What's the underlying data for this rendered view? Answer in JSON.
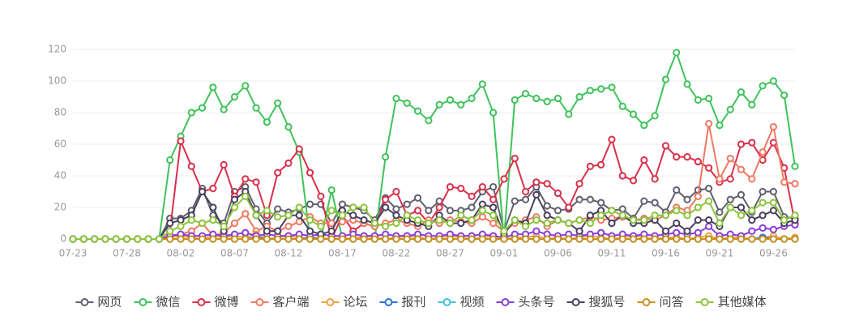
{
  "chart_data": {
    "type": "line",
    "categories": [
      "07-23",
      null,
      null,
      null,
      null,
      "07-28",
      null,
      null,
      null,
      null,
      "08-02",
      null,
      null,
      null,
      null,
      "08-07",
      null,
      null,
      null,
      null,
      "08-12",
      null,
      null,
      null,
      null,
      "08-17",
      null,
      null,
      null,
      null,
      "08-22",
      null,
      null,
      null,
      null,
      "08-27",
      null,
      null,
      null,
      null,
      "09-01",
      null,
      null,
      null,
      null,
      "09-06",
      null,
      null,
      null,
      null,
      "09-11",
      null,
      null,
      null,
      null,
      "09-16",
      null,
      null,
      null,
      null,
      "09-21",
      null,
      null,
      null,
      null,
      "09-26",
      null,
      null
    ],
    "ylim": [
      0,
      120
    ],
    "yticks": [
      0,
      20,
      40,
      60,
      80,
      100,
      120
    ],
    "grid": true,
    "legend": "bottom",
    "series": [
      {
        "name": "网页",
        "color": "#606070",
        "values": [
          0,
          0,
          0,
          0,
          0,
          0,
          0,
          0,
          0,
          13,
          13,
          18,
          32,
          15,
          10,
          30,
          33,
          19,
          10,
          19,
          17,
          19,
          22,
          22,
          10,
          22,
          20,
          18,
          12,
          26,
          19,
          22,
          26,
          18,
          24,
          18,
          18,
          20,
          30,
          33,
          5,
          24,
          25,
          33,
          21,
          18,
          19,
          25,
          25,
          23,
          18,
          19,
          13,
          24,
          23,
          17,
          31,
          25,
          31,
          32,
          17,
          25,
          28,
          17,
          30,
          30,
          14,
          13
        ]
      },
      {
        "name": "微信",
        "color": "#3fc35a",
        "values": [
          0,
          0,
          0,
          0,
          0,
          0,
          0,
          0,
          0,
          50,
          65,
          80,
          83,
          96,
          82,
          90,
          97,
          83,
          74,
          86,
          71,
          55,
          0,
          0,
          31,
          0,
          0,
          0,
          0,
          52,
          89,
          86,
          81,
          75,
          85,
          88,
          85,
          89,
          98,
          80,
          0,
          88,
          92,
          89,
          87,
          89,
          79,
          90,
          94,
          95,
          96,
          84,
          79,
          72,
          78,
          101,
          118,
          98,
          88,
          89,
          72,
          82,
          93,
          85,
          97,
          100,
          91,
          46
        ]
      },
      {
        "name": "微博",
        "color": "#d9304a",
        "values": [
          0,
          0,
          0,
          0,
          0,
          0,
          0,
          0,
          0,
          5,
          62,
          46,
          30,
          32,
          47,
          27,
          38,
          36,
          15,
          42,
          48,
          57,
          42,
          27,
          0,
          15,
          5,
          10,
          8,
          25,
          30,
          15,
          18,
          10,
          20,
          33,
          32,
          27,
          33,
          25,
          38,
          51,
          30,
          36,
          35,
          29,
          20,
          35,
          46,
          47,
          63,
          40,
          37,
          50,
          38,
          59,
          52,
          52,
          49,
          45,
          36,
          38,
          60,
          61,
          50,
          61,
          45,
          10
        ]
      },
      {
        "name": "客户端",
        "color": "#f07860",
        "values": [
          0,
          0,
          0,
          0,
          0,
          0,
          0,
          0,
          0,
          2,
          3,
          5,
          10,
          2,
          4,
          10,
          16,
          5,
          8,
          5,
          8,
          11,
          14,
          10,
          10,
          11,
          12,
          10,
          8,
          10,
          12,
          10,
          8,
          12,
          10,
          12,
          11,
          10,
          14,
          10,
          5,
          10,
          12,
          14,
          8,
          12,
          10,
          12,
          14,
          12,
          13,
          14,
          12,
          13,
          12,
          15,
          20,
          18,
          27,
          73,
          38,
          51,
          44,
          38,
          55,
          71,
          36,
          35
        ]
      },
      {
        "name": "论坛",
        "color": "#f0a040",
        "values": [
          0,
          0,
          0,
          0,
          0,
          0,
          0,
          0,
          0,
          1,
          2,
          1,
          0,
          2,
          1,
          2,
          1,
          3,
          0,
          1,
          2,
          1,
          0,
          1,
          0,
          1,
          0,
          2,
          1,
          0,
          1,
          2,
          1,
          0,
          1,
          2,
          1,
          0,
          1,
          2,
          0,
          1,
          1,
          2,
          0,
          1,
          0,
          1,
          2,
          1,
          0,
          1,
          2,
          1,
          0,
          1,
          1,
          0,
          1,
          2,
          0,
          1,
          1,
          0,
          1,
          2,
          0,
          1
        ]
      },
      {
        "name": "报刊",
        "color": "#2d6fd6",
        "values": [
          0,
          0,
          0,
          0,
          0,
          0,
          0,
          0,
          0,
          0,
          0,
          0,
          0,
          0,
          0,
          0,
          0,
          1,
          0,
          0,
          0,
          0,
          1,
          0,
          0,
          0,
          0,
          0,
          0,
          0,
          0,
          0,
          0,
          0,
          0,
          0,
          0,
          0,
          0,
          0,
          0,
          0,
          0,
          0,
          0,
          0,
          0,
          0,
          0,
          0,
          0,
          0,
          0,
          0,
          0,
          0,
          0,
          0,
          0,
          0,
          0,
          0,
          0,
          0,
          1,
          0,
          0,
          0
        ]
      },
      {
        "name": "视频",
        "color": "#40c0e0",
        "values": [
          0,
          0,
          0,
          0,
          0,
          0,
          0,
          0,
          0,
          0,
          0,
          0,
          0,
          0,
          0,
          0,
          0,
          0,
          0,
          0,
          0,
          0,
          0,
          0,
          0,
          0,
          0,
          0,
          0,
          0,
          0,
          0,
          0,
          0,
          0,
          0,
          0,
          0,
          0,
          0,
          0,
          0,
          0,
          0,
          0,
          0,
          0,
          0,
          0,
          0,
          0,
          0,
          0,
          0,
          0,
          0,
          0,
          0,
          0,
          0,
          0,
          0,
          0,
          0,
          0,
          0,
          0,
          0
        ]
      },
      {
        "name": "头条号",
        "color": "#8a3ed8",
        "values": [
          0,
          0,
          0,
          0,
          0,
          0,
          0,
          0,
          0,
          2,
          3,
          2,
          2,
          3,
          2,
          3,
          4,
          2,
          3,
          2,
          2,
          3,
          2,
          3,
          2,
          2,
          3,
          2,
          2,
          3,
          2,
          2,
          3,
          2,
          2,
          3,
          2,
          2,
          3,
          2,
          1,
          3,
          3,
          5,
          3,
          2,
          3,
          2,
          3,
          4,
          2,
          3,
          2,
          3,
          2,
          3,
          4,
          3,
          4,
          8,
          2,
          3,
          2,
          5,
          7,
          6,
          8,
          9
        ]
      },
      {
        "name": "搜狐号",
        "color": "#4a3f5e",
        "values": [
          0,
          0,
          0,
          0,
          0,
          0,
          0,
          0,
          0,
          10,
          12,
          15,
          30,
          20,
          5,
          25,
          30,
          15,
          5,
          5,
          15,
          15,
          5,
          3,
          5,
          18,
          15,
          12,
          10,
          20,
          15,
          12,
          10,
          8,
          15,
          10,
          10,
          12,
          22,
          20,
          3,
          12,
          10,
          28,
          15,
          12,
          10,
          5,
          15,
          18,
          10,
          15,
          10,
          10,
          12,
          5,
          10,
          5,
          12,
          12,
          8,
          20,
          20,
          12,
          15,
          18,
          10,
          12
        ]
      },
      {
        "name": "问答",
        "color": "#c8901e",
        "values": [
          0,
          0,
          0,
          0,
          0,
          0,
          0,
          0,
          0,
          0,
          0,
          0,
          0,
          0,
          0,
          0,
          0,
          0,
          0,
          0,
          0,
          0,
          0,
          0,
          0,
          0,
          0,
          0,
          0,
          0,
          0,
          0,
          0,
          0,
          0,
          0,
          0,
          0,
          0,
          0,
          0,
          0,
          0,
          0,
          0,
          0,
          0,
          0,
          0,
          0,
          0,
          0,
          0,
          0,
          0,
          0,
          0,
          0,
          0,
          0,
          0,
          0,
          0,
          0,
          0,
          0,
          0,
          0
        ]
      },
      {
        "name": "其他媒体",
        "color": "#8cc43c",
        "values": [
          0,
          0,
          0,
          0,
          0,
          0,
          0,
          0,
          0,
          5,
          8,
          12,
          10,
          12,
          8,
          20,
          27,
          15,
          18,
          14,
          15,
          20,
          12,
          8,
          18,
          15,
          20,
          20,
          10,
          8,
          10,
          15,
          12,
          10,
          12,
          10,
          15,
          12,
          18,
          15,
          5,
          12,
          8,
          12,
          10,
          12,
          10,
          12,
          10,
          15,
          18,
          15,
          12,
          12,
          15,
          15,
          18,
          15,
          20,
          24,
          10,
          20,
          15,
          18,
          23,
          23,
          12,
          15
        ]
      }
    ]
  }
}
